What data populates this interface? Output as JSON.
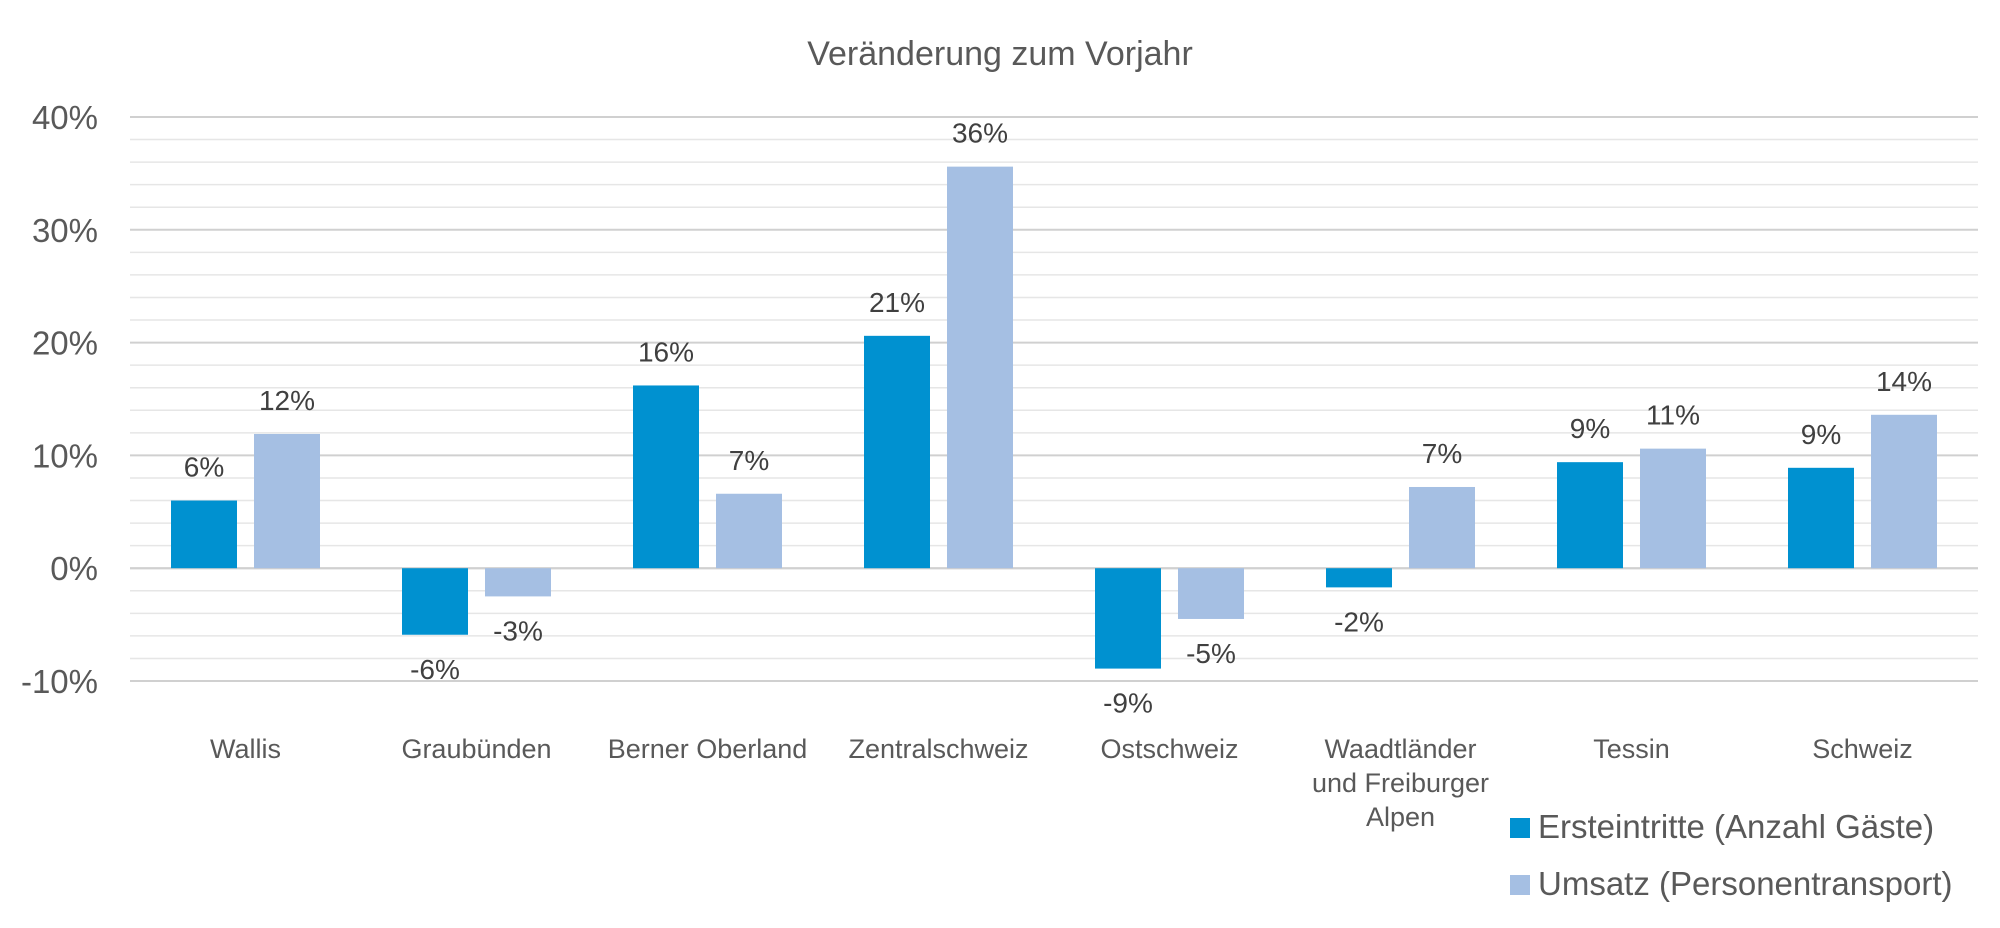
{
  "chart_data": {
    "type": "bar",
    "title": "Veränderung zum Vorjahr",
    "categories": [
      [
        "Wallis"
      ],
      [
        "Graubünden"
      ],
      [
        "Berner Oberland"
      ],
      [
        "Zentralschweiz"
      ],
      [
        "Ostschweiz"
      ],
      [
        "Waadtländer",
        "und Freiburger",
        "Alpen"
      ],
      [
        "Tessin"
      ],
      [
        "Schweiz"
      ]
    ],
    "series": [
      {
        "name": "Ersteintritte (Anzahl Gäste)",
        "color": "#0091D0",
        "values": [
          6.0,
          -5.9,
          16.2,
          20.6,
          -8.9,
          -1.7,
          9.4,
          8.9
        ],
        "labels": [
          "6%",
          "-6%",
          "16%",
          "21%",
          "-9%",
          "-2%",
          "9%",
          "9%"
        ]
      },
      {
        "name": "Umsatz (Personentransport)",
        "color": "#A5BFE3",
        "values": [
          11.9,
          -2.5,
          6.6,
          35.6,
          -4.5,
          7.2,
          10.6,
          13.6
        ],
        "labels": [
          "12%",
          "-3%",
          "7%",
          "36%",
          "-5%",
          "7%",
          "11%",
          "14%"
        ]
      }
    ],
    "ylim": [
      -10,
      40
    ],
    "yticks": [
      40,
      30,
      20,
      10,
      0,
      -10
    ],
    "ytick_labels": [
      "40%",
      "30%",
      "20%",
      "10%",
      "0%",
      "-10%"
    ],
    "minor_grid_step": 2,
    "grid": true,
    "legend": "bottom-right",
    "xlabel": "",
    "ylabel": ""
  }
}
